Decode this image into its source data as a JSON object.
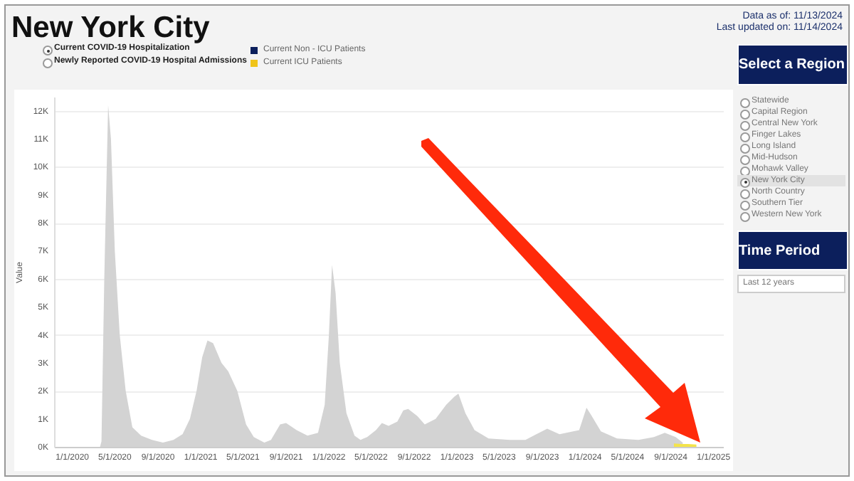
{
  "chart_data": {
    "type": "area",
    "title": "New York City",
    "ylabel": "Value",
    "annotations": [
      "Data as of: 11/13/2024",
      "Last updated on: 11/14/2024",
      "Current COVID-19 Hospitalization",
      "Newly Reported COVID-19 Hospital Admissions",
      "Current Non - ICU Patients",
      "Current ICU Patients",
      "Select a Region",
      "Statewide",
      "Capital Region",
      "Central New York",
      "Finger Lakes",
      "Long Island",
      "Mid-Hudson",
      "Mohawk Valley",
      "New York City",
      "North Country",
      "Southern Tier",
      "Western New York",
      "Time Period",
      "Last 12 years"
    ],
    "xlim": [
      "2019-11-10",
      "2025-01-28"
    ],
    "xticks": [
      {
        "value": "2020-01-01",
        "label": "1/1/2020"
      },
      {
        "value": "2020-05-01",
        "label": "5/1/2020"
      },
      {
        "value": "2020-09-01",
        "label": "9/1/2020"
      },
      {
        "value": "2021-01-01",
        "label": "1/1/2021"
      },
      {
        "value": "2021-05-01",
        "label": "5/1/2021"
      },
      {
        "value": "2021-09-01",
        "label": "9/1/2021"
      },
      {
        "value": "2022-01-01",
        "label": "1/1/2022"
      },
      {
        "value": "2022-05-01",
        "label": "5/1/2022"
      },
      {
        "value": "2022-09-01",
        "label": "9/1/2022"
      },
      {
        "value": "2023-01-01",
        "label": "1/1/2023"
      },
      {
        "value": "2023-05-01",
        "label": "5/1/2023"
      },
      {
        "value": "2023-09-01",
        "label": "9/1/2023"
      },
      {
        "value": "2024-01-01",
        "label": "1/1/2024"
      },
      {
        "value": "2024-05-01",
        "label": "5/1/2024"
      },
      {
        "value": "2024-09-01",
        "label": "9/1/2024"
      },
      {
        "value": "2025-01-01",
        "label": "1/1/2025"
      }
    ],
    "ylim": [
      0,
      12500
    ],
    "yticks": [
      {
        "value": 0,
        "label": "0K"
      },
      {
        "value": 1000,
        "label": "1K"
      },
      {
        "value": 2000,
        "label": "2K"
      },
      {
        "value": 3000,
        "label": "3K"
      },
      {
        "value": 4000,
        "label": "4K"
      },
      {
        "value": 5000,
        "label": "5K"
      },
      {
        "value": 6000,
        "label": "6K"
      },
      {
        "value": 7000,
        "label": "7K"
      },
      {
        "value": 8000,
        "label": "8K"
      },
      {
        "value": 9000,
        "label": "9K"
      },
      {
        "value": 10000,
        "label": "10K"
      },
      {
        "value": 11000,
        "label": "11K"
      },
      {
        "value": 12000,
        "label": "12K"
      }
    ],
    "grid": "y",
    "series": [
      {
        "color": "#d3d3d3",
        "x": [
          "2020-03-20",
          "2020-03-24",
          "2020-04-01",
          "2020-04-12",
          "2020-04-20",
          "2020-05-01",
          "2020-05-15",
          "2020-06-01",
          "2020-06-20",
          "2020-07-15",
          "2020-08-15",
          "2020-09-15",
          "2020-10-15",
          "2020-11-10",
          "2020-12-01",
          "2020-12-20",
          "2021-01-05",
          "2021-01-20",
          "2021-02-05",
          "2021-03-01",
          "2021-03-20",
          "2021-04-15",
          "2021-05-10",
          "2021-06-01",
          "2021-07-01",
          "2021-07-20",
          "2021-08-15",
          "2021-09-01",
          "2021-10-01",
          "2021-11-01",
          "2021-12-01",
          "2021-12-20",
          "2022-01-01",
          "2022-01-10",
          "2022-01-20",
          "2022-02-01",
          "2022-02-20",
          "2022-03-15",
          "2022-04-01",
          "2022-04-20",
          "2022-05-15",
          "2022-06-01",
          "2022-06-20",
          "2022-07-15",
          "2022-08-01",
          "2022-08-15",
          "2022-09-10",
          "2022-10-01",
          "2022-11-01",
          "2022-12-01",
          "2022-12-25",
          "2023-01-05",
          "2023-01-25",
          "2023-02-20",
          "2023-04-01",
          "2023-06-01",
          "2023-07-15",
          "2023-08-15",
          "2023-09-15",
          "2023-10-20",
          "2023-12-15",
          "2024-01-05",
          "2024-01-20",
          "2024-02-15",
          "2024-04-01",
          "2024-06-01",
          "2024-07-15",
          "2024-08-15",
          "2024-09-15",
          "2024-10-05"
        ],
        "values": [
          0,
          200,
          6000,
          12200,
          11000,
          7000,
          4000,
          2000,
          700,
          400,
          250,
          150,
          250,
          450,
          1000,
          2000,
          3200,
          3800,
          3700,
          3000,
          2700,
          2000,
          800,
          350,
          150,
          250,
          800,
          850,
          600,
          400,
          500,
          1500,
          4000,
          6500,
          5500,
          3000,
          1200,
          400,
          250,
          350,
          600,
          850,
          750,
          900,
          1300,
          1350,
          1100,
          800,
          1000,
          1500,
          1800,
          1900,
          1200,
          600,
          300,
          250,
          250,
          450,
          650,
          450,
          600,
          1400,
          1100,
          550,
          300,
          250,
          350,
          500,
          350,
          150
        ]
      },
      {
        "color": "#f3e34a",
        "x": [
          "2024-09-10",
          "2024-10-01",
          "2024-10-20",
          "2024-11-13"
        ],
        "values": [
          120,
          100,
          100,
          80
        ]
      }
    ]
  }
}
